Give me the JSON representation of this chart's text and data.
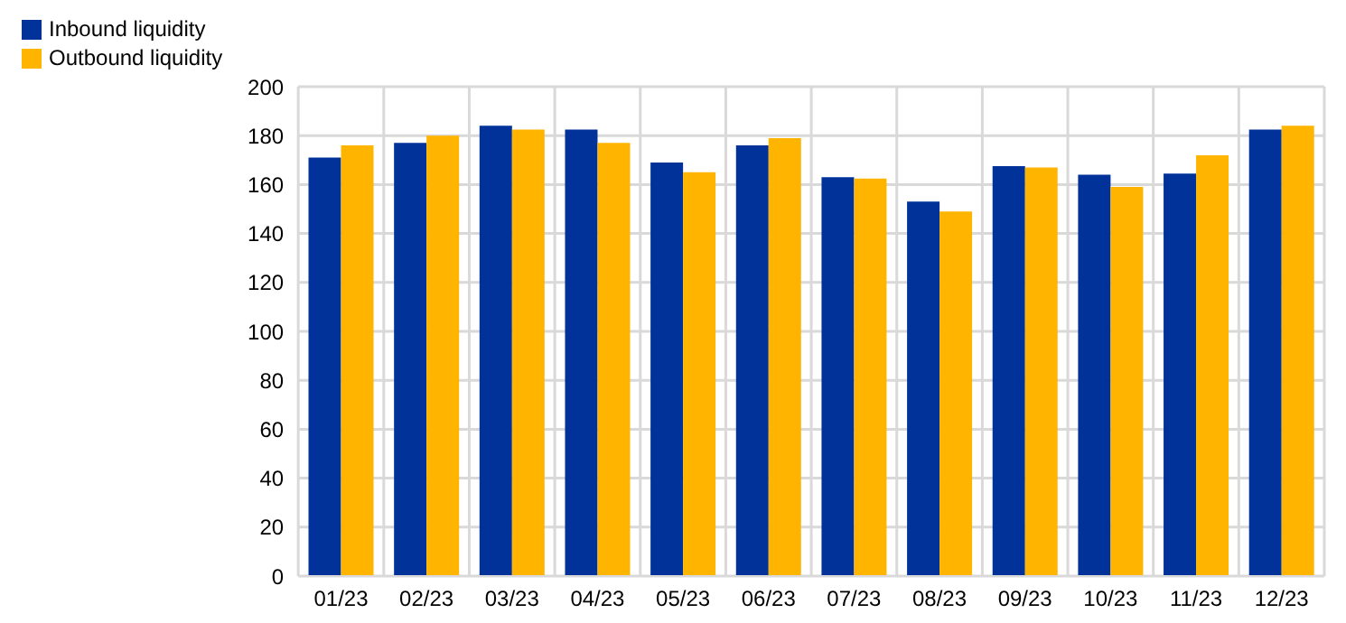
{
  "chart_data": {
    "type": "bar",
    "categories": [
      "01/23",
      "02/23",
      "03/23",
      "04/23",
      "05/23",
      "06/23",
      "07/23",
      "08/23",
      "09/23",
      "10/23",
      "11/23",
      "12/23"
    ],
    "series": [
      {
        "name": "Inbound liquidity",
        "color": "#003299",
        "values": [
          171,
          177,
          184,
          182.5,
          169,
          176,
          163,
          153,
          167.5,
          164,
          164.5,
          182.5
        ]
      },
      {
        "name": "Outbound liquidity",
        "color": "#ffb400",
        "values": [
          176,
          180,
          182.5,
          177,
          165,
          179,
          162.5,
          149,
          167,
          159,
          172,
          184
        ]
      }
    ],
    "ylim": [
      0,
      200
    ],
    "yticks": [
      0,
      20,
      40,
      60,
      80,
      100,
      120,
      140,
      160,
      180,
      200
    ],
    "grid": true,
    "legend": "top left"
  }
}
